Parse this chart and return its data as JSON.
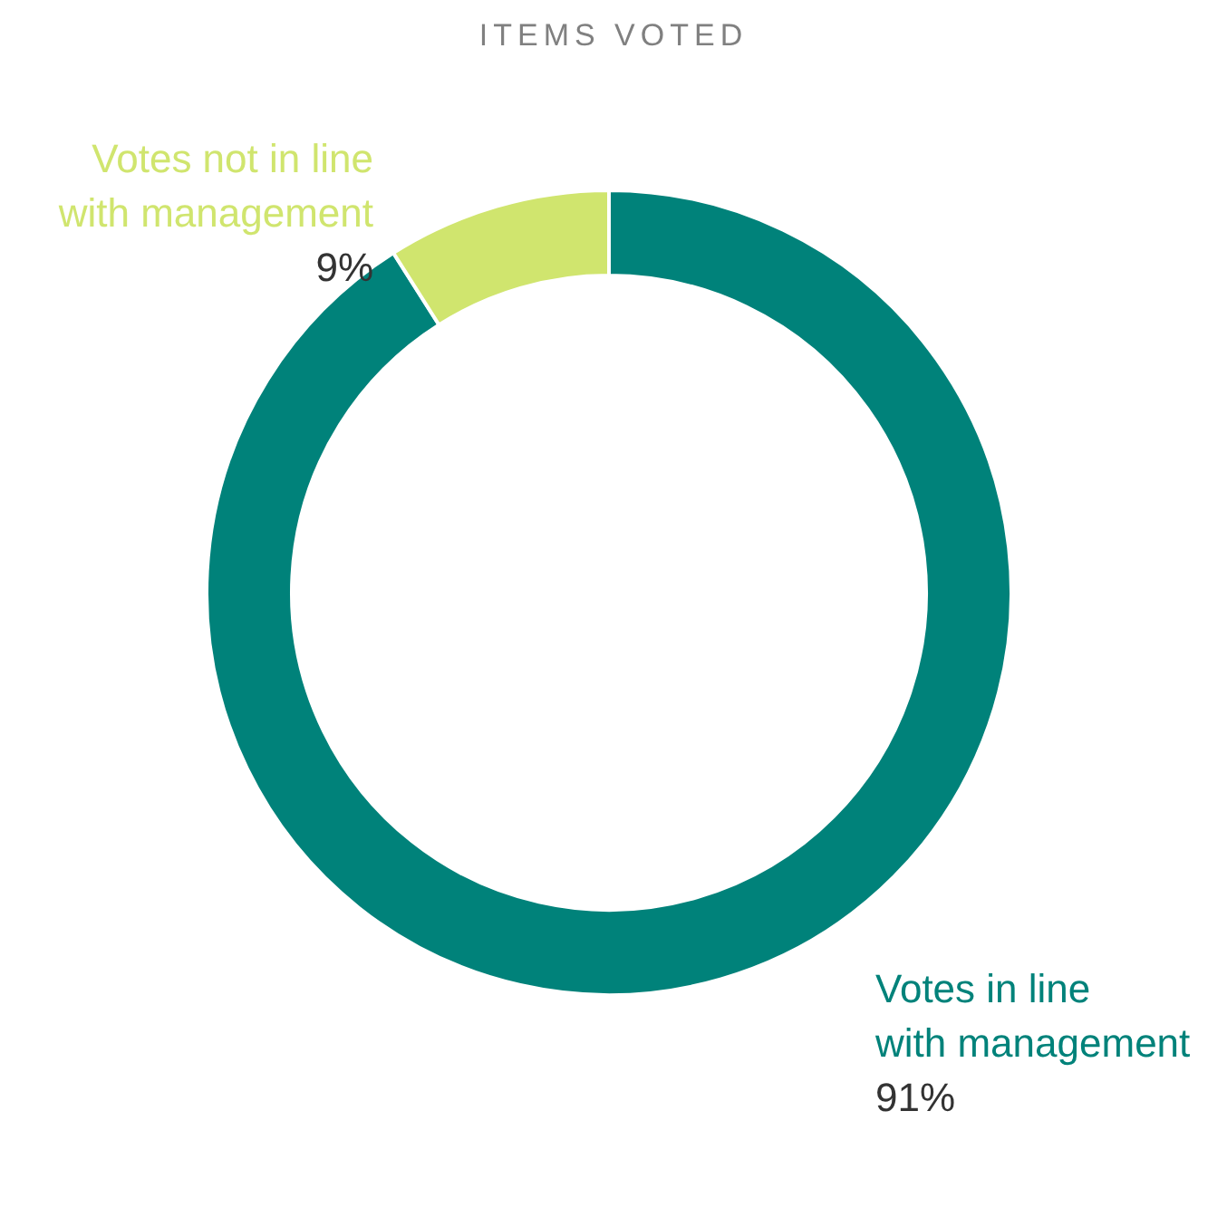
{
  "chart_data": {
    "type": "donut",
    "title": "ITEMS VOTED",
    "categories": [
      "Votes in line with management",
      "Votes not in line with management"
    ],
    "values": [
      91,
      9
    ],
    "colors": [
      "#00827a",
      "#d0e56e"
    ],
    "value_labels": [
      "91%",
      "9%"
    ]
  }
}
